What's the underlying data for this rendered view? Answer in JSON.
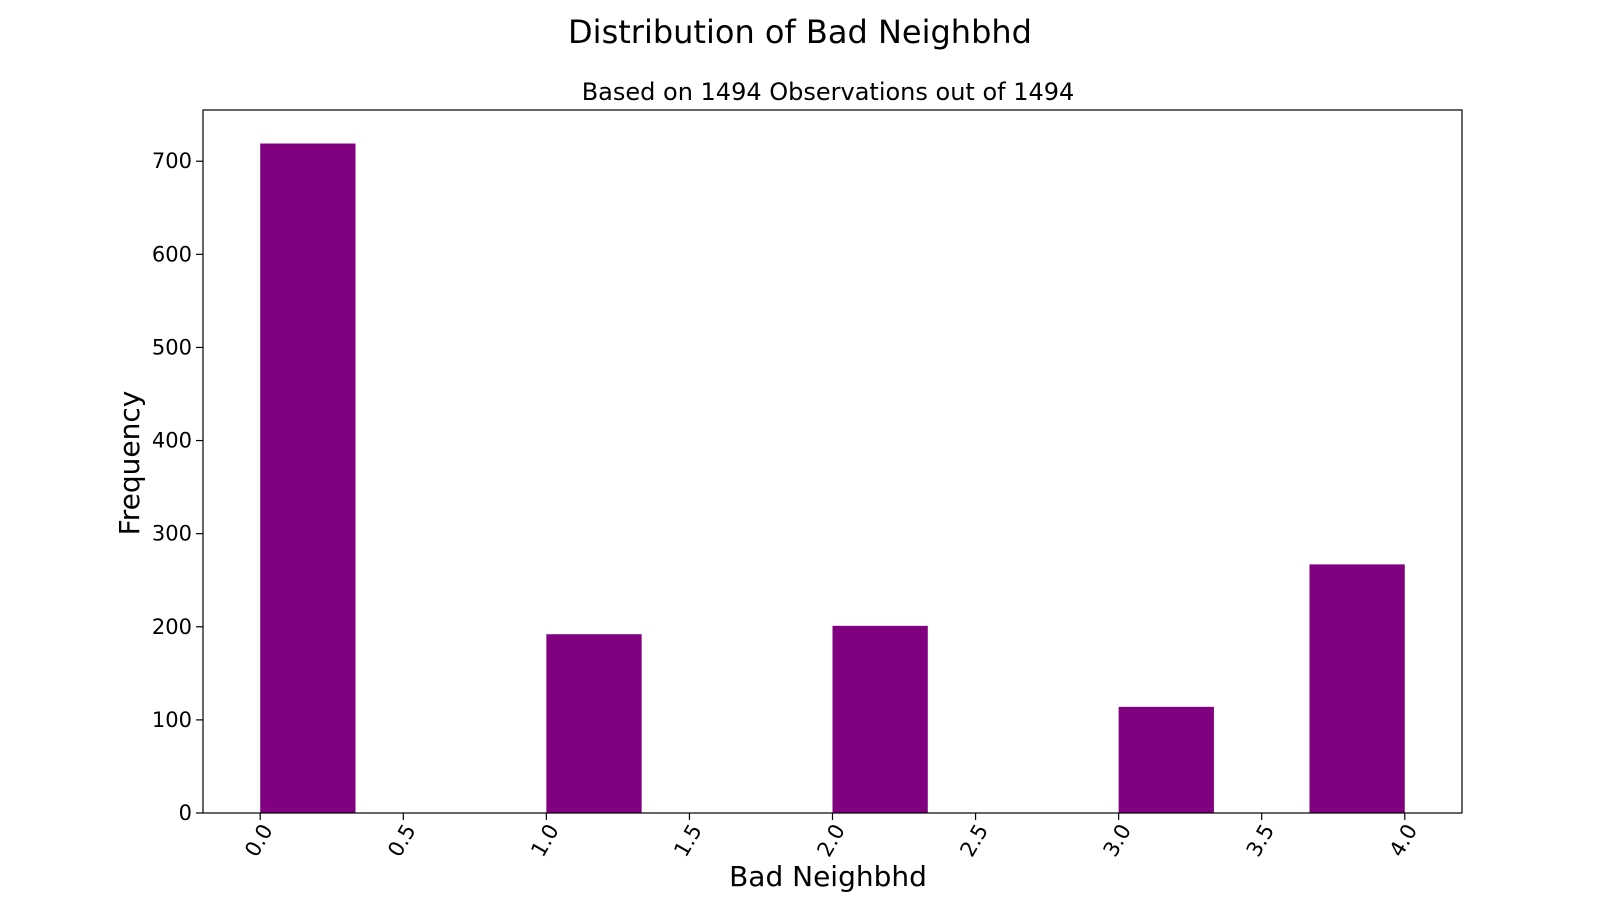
{
  "chart_data": {
    "type": "bar",
    "title": "Distribution of Bad Neighbhd",
    "subtitle": "Based on 1494 Observations out of 1494",
    "xlabel": "Bad Neighbhd",
    "ylabel": "Frequency",
    "bins": [
      {
        "start": 0.0,
        "end": 0.4,
        "value": 719
      },
      {
        "start": 0.4,
        "end": 0.8,
        "value": 0
      },
      {
        "start": 0.8,
        "end": 1.2,
        "value": 0
      },
      {
        "start": 1.2,
        "end": 1.6,
        "value": 192
      },
      {
        "start": 1.6,
        "end": 2.0,
        "value": 0
      },
      {
        "start": 2.0,
        "end": 2.4,
        "value": 201
      },
      {
        "start": 2.4,
        "end": 2.8,
        "value": 0
      },
      {
        "start": 2.8,
        "end": 3.2,
        "value": 0
      },
      {
        "start": 3.2,
        "end": 3.6,
        "value": 114
      },
      {
        "start": 3.6,
        "end": 4.0,
        "value": 267
      }
    ],
    "bar_geometry": [
      {
        "x0": 0.0,
        "x1": 0.333,
        "value": 719
      },
      {
        "x0": 1.0,
        "x1": 1.333,
        "value": 192
      },
      {
        "x0": 2.0,
        "x1": 2.333,
        "value": 201
      },
      {
        "x0": 3.0,
        "x1": 3.333,
        "value": 114
      },
      {
        "x0": 3.667,
        "x1": 4.0,
        "value": 267
      }
    ],
    "xlim": [
      -0.2,
      4.2
    ],
    "ylim": [
      0,
      755
    ],
    "x_ticks": [
      0.0,
      0.5,
      1.0,
      1.5,
      2.0,
      2.5,
      3.0,
      3.5,
      4.0
    ],
    "x_tick_labels": [
      "0.0",
      "0.5",
      "1.0",
      "1.5",
      "2.0",
      "2.5",
      "3.0",
      "3.5",
      "4.0"
    ],
    "y_ticks": [
      0,
      100,
      200,
      300,
      400,
      500,
      600,
      700
    ],
    "y_tick_labels": [
      "0",
      "100",
      "200",
      "300",
      "400",
      "500",
      "600",
      "700"
    ],
    "bar_color": "#800080",
    "grid": false,
    "legend": "none"
  }
}
